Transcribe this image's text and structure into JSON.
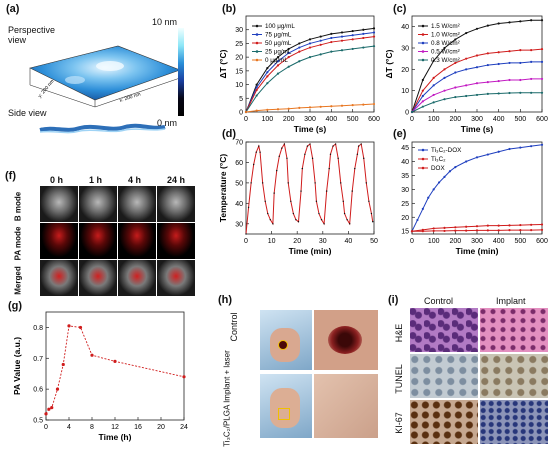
{
  "panels": {
    "a": {
      "label": "(a)",
      "perspective": "Perspective view",
      "side": "Side view",
      "colorbar_top": "10 nm",
      "colorbar_bottom": "0 nm",
      "axis_y": "y: 200 nm",
      "axis_x": "x: 200 nm"
    },
    "b": {
      "label": "(b)"
    },
    "c": {
      "label": "(c)"
    },
    "d": {
      "label": "(d)"
    },
    "e": {
      "label": "(e)"
    },
    "f": {
      "label": "(f)",
      "times": [
        "0 h",
        "1 h",
        "4 h",
        "24 h"
      ],
      "rows": [
        "B mode",
        "PA mode",
        "Merged"
      ]
    },
    "g": {
      "label": "(g)"
    },
    "h": {
      "label": "(h)",
      "rows": [
        "Control",
        "Ti₃C₂/PLGA Implant + laser"
      ]
    },
    "i": {
      "label": "(i)",
      "cols": [
        "Control",
        "Implant"
      ],
      "rows": [
        "H&E",
        "TUNEL",
        "KI-67"
      ]
    }
  },
  "chart_data": [
    {
      "id": "b",
      "type": "line",
      "xlabel": "Time (s)",
      "ylabel": "ΔT (°C)",
      "xlim": [
        0,
        600
      ],
      "ylim": [
        0,
        35
      ],
      "xticks": [
        0,
        100,
        200,
        300,
        400,
        500,
        600
      ],
      "yticks": [
        0,
        5,
        10,
        15,
        20,
        25,
        30
      ],
      "x": [
        0,
        50,
        100,
        150,
        200,
        250,
        300,
        350,
        400,
        450,
        500,
        550,
        600
      ],
      "series": [
        {
          "name": "100 μg/mL",
          "color": "#111111",
          "values": [
            0,
            10,
            16,
            20,
            23,
            25,
            26.5,
            27.5,
            28.5,
            29,
            29.5,
            30,
            30.5
          ]
        },
        {
          "name": "75 μg/mL",
          "color": "#1f3fbf",
          "values": [
            0,
            9,
            14.5,
            18.5,
            21.5,
            23.5,
            25,
            26,
            27,
            27.5,
            28,
            28.5,
            29
          ]
        },
        {
          "name": "50 μg/mL",
          "color": "#d01c1c",
          "values": [
            0,
            8,
            13,
            17,
            20,
            22,
            23.5,
            24.5,
            25.5,
            26,
            26.5,
            27,
            27.5
          ]
        },
        {
          "name": "25 μg/mL",
          "color": "#1a6a6a",
          "values": [
            0,
            6,
            10.5,
            14,
            16.5,
            18.5,
            20,
            21,
            22,
            22.5,
            23,
            23.5,
            24
          ]
        },
        {
          "name": "0 μg/mL",
          "color": "#e87722",
          "values": [
            0,
            0.5,
            0.8,
            1,
            1.2,
            1.5,
            1.7,
            1.9,
            2.1,
            2.3,
            2.5,
            2.7,
            2.9
          ]
        }
      ]
    },
    {
      "id": "c",
      "type": "line",
      "xlabel": "Time (s)",
      "ylabel": "ΔT (°C)",
      "xlim": [
        0,
        600
      ],
      "ylim": [
        0,
        45
      ],
      "xticks": [
        0,
        100,
        200,
        300,
        400,
        500,
        600
      ],
      "yticks": [
        0,
        10,
        20,
        30,
        40
      ],
      "x": [
        0,
        50,
        100,
        150,
        200,
        250,
        300,
        350,
        400,
        450,
        500,
        550,
        600
      ],
      "series": [
        {
          "name": "1.5 W/cm²",
          "color": "#111111",
          "values": [
            0,
            15,
            24,
            30,
            34,
            37,
            39,
            40.5,
            41.5,
            42,
            42.5,
            43,
            43
          ]
        },
        {
          "name": "1.0 W/cm²",
          "color": "#d01c1c",
          "values": [
            0,
            10,
            16,
            20,
            23,
            25,
            26.5,
            27.5,
            28,
            28.5,
            29,
            29,
            29.5
          ]
        },
        {
          "name": "0.8 W/cm²",
          "color": "#1f3fbf",
          "values": [
            0,
            7.5,
            12.5,
            16,
            18.5,
            20,
            21,
            22,
            22.5,
            23,
            23,
            23.5,
            23.5
          ]
        },
        {
          "name": "0.5 W/cm²",
          "color": "#c21ac2",
          "values": [
            0,
            5,
            8,
            10,
            11.5,
            12.5,
            13.5,
            14,
            14.5,
            15,
            15,
            15.5,
            15.5
          ]
        },
        {
          "name": "0.3 W/cm²",
          "color": "#1a6a6a",
          "values": [
            0,
            2.5,
            4.5,
            6,
            7,
            7.5,
            8,
            8.5,
            8.7,
            8.9,
            9,
            9,
            9
          ]
        }
      ]
    },
    {
      "id": "d",
      "type": "line",
      "xlabel": "Time (min)",
      "ylabel": "Temperature (°C)",
      "xlim": [
        0,
        50
      ],
      "ylim": [
        25,
        70
      ],
      "xticks": [
        0,
        10,
        20,
        30,
        40,
        50
      ],
      "yticks": [
        30,
        40,
        50,
        60,
        70
      ],
      "series": [
        {
          "name": "",
          "color": "#d01c1c",
          "x": [
            0,
            1,
            2,
            3,
            4,
            5,
            5.5,
            6.5,
            7.5,
            8.5,
            9.5,
            10.5,
            11,
            12,
            13,
            14,
            15,
            16,
            16.5,
            17.5,
            18.5,
            19.5,
            20.5,
            21.5,
            22,
            23,
            24,
            25,
            26,
            27,
            27.5,
            28.5,
            29.5,
            30.5,
            31.5,
            32.5,
            33,
            34,
            35,
            36,
            37,
            38,
            38.5,
            39.5,
            40.5,
            41.5,
            42.5,
            43.5,
            44,
            45,
            46,
            47,
            48,
            49,
            49.5
          ],
          "values": [
            25,
            38,
            50,
            59,
            65,
            68,
            65,
            50,
            41,
            35,
            32,
            30,
            45,
            56,
            63,
            67,
            69,
            62,
            50,
            41,
            35,
            32,
            31,
            46,
            57,
            64,
            68,
            69,
            62,
            50,
            41,
            35,
            32,
            30,
            46,
            57,
            64,
            68,
            69,
            62,
            50,
            41,
            35,
            32,
            30,
            46,
            57,
            64,
            68,
            69,
            62,
            50,
            41,
            35,
            31
          ]
        }
      ]
    },
    {
      "id": "e",
      "type": "line",
      "xlabel": "Time (min)",
      "ylabel": "",
      "xlim": [
        0,
        600
      ],
      "ylim": [
        14,
        47
      ],
      "xticks": [
        0,
        100,
        200,
        300,
        400,
        500,
        600
      ],
      "yticks": [
        15,
        20,
        25,
        30,
        35,
        40,
        45
      ],
      "series": [
        {
          "name": "Ti₃C₂-DOX",
          "color": "#1f3fbf",
          "x": [
            0,
            25,
            50,
            75,
            100,
            125,
            150,
            175,
            200,
            250,
            300,
            350,
            400,
            450,
            500,
            550,
            600
          ],
          "values": [
            15,
            19,
            23,
            27,
            30,
            32.5,
            34.5,
            36.5,
            38,
            40,
            41.5,
            42.5,
            43.5,
            44.5,
            45,
            45.5,
            46
          ]
        },
        {
          "name": "Ti₃C₂",
          "color": "#d01c1c",
          "x": [
            0,
            50,
            100,
            150,
            200,
            250,
            300,
            350,
            400,
            450,
            500,
            550,
            600
          ],
          "values": [
            15,
            15.5,
            16,
            16.2,
            16.4,
            16.6,
            16.8,
            17,
            17,
            17.1,
            17.2,
            17.3,
            17.4
          ]
        },
        {
          "name": "DOX",
          "color": "#d01c1c",
          "x": [
            0,
            50,
            100,
            150,
            200,
            250,
            300,
            350,
            400,
            450,
            500,
            550,
            600
          ],
          "values": [
            15,
            15,
            15.1,
            15.1,
            15.2,
            15.2,
            15.3,
            15.3,
            15.3,
            15.4,
            15.4,
            15.4,
            15.5
          ]
        }
      ]
    },
    {
      "id": "g",
      "type": "line",
      "xlabel": "Time (h)",
      "ylabel": "PA Value (a.u.)",
      "xlim": [
        0,
        24
      ],
      "ylim": [
        0.5,
        0.85
      ],
      "xticks": [
        0,
        4,
        8,
        12,
        16,
        20,
        24
      ],
      "yticks": [
        0.5,
        0.6,
        0.7,
        0.8
      ],
      "series": [
        {
          "name": "",
          "color": "#d01c1c",
          "x": [
            0,
            0.5,
            1,
            2,
            3,
            4,
            6,
            8,
            12,
            24
          ],
          "values": [
            0.52,
            0.535,
            0.54,
            0.6,
            0.68,
            0.805,
            0.8,
            0.71,
            0.69,
            0.64
          ]
        }
      ]
    }
  ]
}
